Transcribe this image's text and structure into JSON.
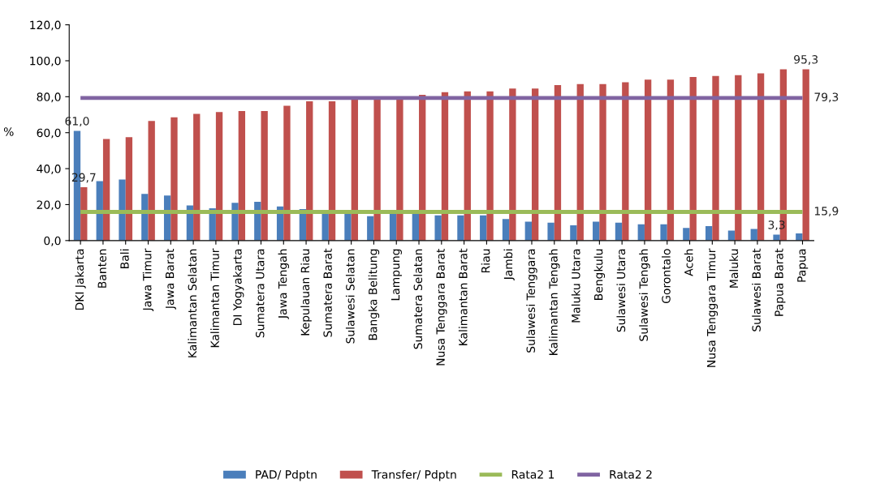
{
  "chart_data": {
    "type": "bar",
    "ylabel": "%",
    "categories": [
      "DKI Jakarta",
      "Banten",
      "Bali",
      "Jawa Timur",
      "Jawa Barat",
      "Kalimantan Selatan",
      "Kalimantan Timur",
      "DI Yogyakarta",
      "Sumatera Utara",
      "Jawa Tengah",
      "Kepulauan Riau",
      "Sumatera Barat",
      "Sulawesi Selatan",
      "Bangka Belitung",
      "Lampung",
      "Sumatera Selatan",
      "Nusa Tenggara Barat",
      "Kalimantan Barat",
      "Riau",
      "Jambi",
      "Sulawesi Tenggara",
      "Kalimantan Tengah",
      "Maluku Utara",
      "Bengkulu",
      "Sulawesi Utara",
      "Sulawesi Tengah",
      "Gorontalo",
      "Aceh",
      "Nusa Tenggara Timur",
      "Maluku",
      "Sulawesi Barat",
      "Papua Barat",
      "Papua"
    ],
    "series": [
      {
        "name": "PAD/ Pdptn",
        "color": "#4a7ebb",
        "values": [
          61.0,
          33,
          34,
          26,
          25,
          19.5,
          18,
          21,
          21.5,
          19,
          17.5,
          16,
          15.5,
          13.5,
          15,
          15,
          14,
          14,
          14,
          12,
          10.5,
          10,
          8.5,
          10.5,
          10,
          9,
          9,
          7,
          8,
          5.5,
          6.5,
          3.3,
          4
        ],
        "value_labels": [
          "61,0",
          null,
          null,
          null,
          null,
          null,
          null,
          null,
          null,
          null,
          null,
          null,
          null,
          null,
          null,
          null,
          null,
          null,
          null,
          null,
          null,
          null,
          null,
          null,
          null,
          null,
          null,
          null,
          null,
          null,
          null,
          "3,3",
          null
        ]
      },
      {
        "name": "Transfer/ Pdptn",
        "color": "#c0504d",
        "values": [
          29.7,
          56.5,
          57.5,
          66.5,
          68.5,
          70.5,
          71.5,
          72,
          72,
          75,
          77.5,
          77.5,
          79,
          79,
          79.5,
          81,
          82.5,
          83,
          83,
          84.5,
          84.5,
          86.5,
          87,
          87,
          88,
          89.5,
          89.5,
          91,
          91.5,
          92,
          93,
          95.3,
          95.3
        ],
        "value_labels": [
          "29,7",
          null,
          null,
          null,
          null,
          null,
          null,
          null,
          null,
          null,
          null,
          null,
          null,
          null,
          null,
          null,
          null,
          null,
          null,
          null,
          null,
          null,
          null,
          null,
          null,
          null,
          null,
          null,
          null,
          null,
          null,
          null,
          "95,3"
        ]
      },
      {
        "name": "Rata2 1",
        "type": "line",
        "color": "#9bbb59",
        "values": [
          15.9,
          15.9,
          15.9,
          15.9,
          15.9,
          15.9,
          15.9,
          15.9,
          15.9,
          15.9,
          15.9,
          15.9,
          15.9,
          15.9,
          15.9,
          15.9,
          15.9,
          15.9,
          15.9,
          15.9,
          15.9,
          15.9,
          15.9,
          15.9,
          15.9,
          15.9,
          15.9,
          15.9,
          15.9,
          15.9,
          15.9,
          15.9,
          15.9
        ],
        "value_labels": [
          null,
          null,
          null,
          null,
          null,
          null,
          null,
          null,
          null,
          null,
          null,
          null,
          null,
          null,
          null,
          null,
          null,
          null,
          null,
          null,
          null,
          null,
          null,
          null,
          null,
          null,
          null,
          null,
          null,
          null,
          null,
          null,
          "15,9"
        ]
      },
      {
        "name": "Rata2 2",
        "type": "line",
        "color": "#8064a2",
        "values": [
          79.3,
          79.3,
          79.3,
          79.3,
          79.3,
          79.3,
          79.3,
          79.3,
          79.3,
          79.3,
          79.3,
          79.3,
          79.3,
          79.3,
          79.3,
          79.3,
          79.3,
          79.3,
          79.3,
          79.3,
          79.3,
          79.3,
          79.3,
          79.3,
          79.3,
          79.3,
          79.3,
          79.3,
          79.3,
          79.3,
          79.3,
          79.3,
          79.3
        ],
        "value_labels": [
          null,
          null,
          null,
          null,
          null,
          null,
          null,
          null,
          null,
          null,
          null,
          null,
          null,
          null,
          null,
          null,
          null,
          null,
          null,
          null,
          null,
          null,
          null,
          null,
          null,
          null,
          null,
          null,
          null,
          null,
          null,
          null,
          "79,3"
        ]
      }
    ],
    "ylim": [
      0,
      120
    ],
    "yticks": [
      {
        "value": 0,
        "label": "0,0"
      },
      {
        "value": 20,
        "label": "20,0"
      },
      {
        "value": 40,
        "label": "40,0"
      },
      {
        "value": 60,
        "label": "60,0"
      },
      {
        "value": 80,
        "label": "80,0"
      },
      {
        "value": 100,
        "label": "100,0"
      },
      {
        "value": 120,
        "label": "120,0"
      }
    ],
    "grid": false,
    "legend": "bottom",
    "marker": "none",
    "line_style": "solid"
  }
}
